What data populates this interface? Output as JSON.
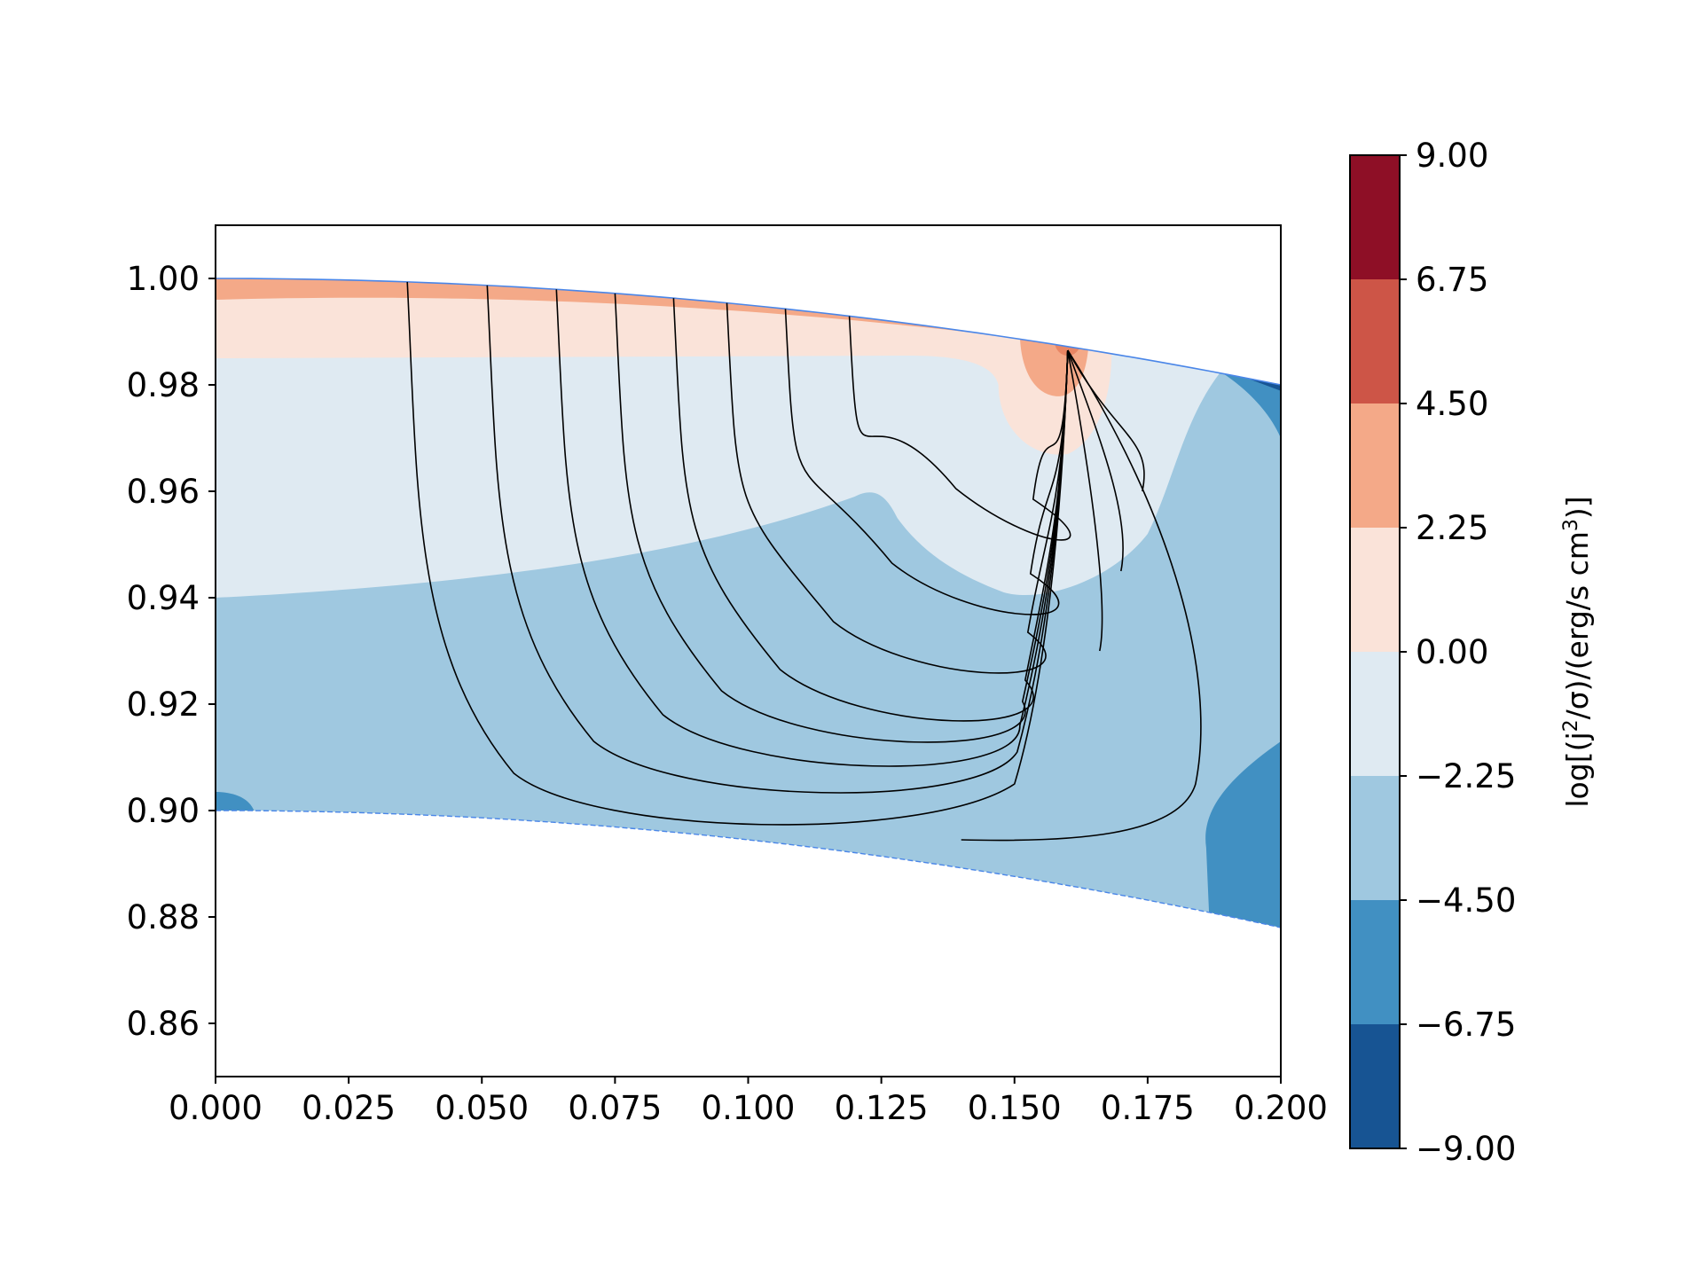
{
  "chart_data": {
    "type": "contour",
    "title": "",
    "xlabel": "",
    "ylabel": "",
    "xlim": [
      0.0,
      0.2
    ],
    "ylim": [
      0.85,
      1.01
    ],
    "x_ticks": [
      "0.000",
      "0.025",
      "0.050",
      "0.075",
      "0.100",
      "0.125",
      "0.150",
      "0.175",
      "0.200"
    ],
    "y_ticks": [
      "0.86",
      "0.88",
      "0.90",
      "0.92",
      "0.94",
      "0.96",
      "0.98",
      "1.00"
    ],
    "grid": false,
    "outer_boundary": {
      "x": [
        0.0,
        0.05,
        0.1,
        0.15,
        0.2
      ],
      "y": [
        1.0,
        0.99875,
        0.995,
        0.98875,
        0.98
      ],
      "color": "#4a86e8"
    },
    "inner_boundary": {
      "x": [
        0.0,
        0.05,
        0.1,
        0.15,
        0.2
      ],
      "y": [
        0.9,
        0.89875,
        0.895,
        0.88875,
        0.878
      ],
      "color": "#4a86e8",
      "dashed": true
    },
    "contour_regions": [
      {
        "level": "0.00 to 2.25",
        "color": "#fae3d9",
        "description": "top layer band"
      },
      {
        "level": "2.25 to 4.50",
        "color": "#f4a988",
        "description": "thin surface strip and source spot"
      },
      {
        "level": "-2.25 to 0.00",
        "color": "#dfeaf2",
        "description": "upper interior"
      },
      {
        "level": "-4.50 to -2.25",
        "color": "#9fc8e0",
        "description": "lower interior"
      },
      {
        "level": "-6.75 to -4.50",
        "color": "#4190c2",
        "description": "right edge regions"
      },
      {
        "level": "-9.00 to -6.75",
        "color": "#175493",
        "description": "top right corner"
      }
    ],
    "field_lines": {
      "color": "#000000",
      "source_point": [
        0.16,
        0.9865
      ],
      "footpoints_x": [
        0.036,
        0.051,
        0.064,
        0.075,
        0.086,
        0.096,
        0.107,
        0.119
      ],
      "closed_loop_right_extent_x": 0.186
    },
    "colorbar": {
      "label": "log[(j²/σ)/(erg/s cm³)]",
      "label_parts": {
        "prefix": "log[(j",
        "sup1": "2",
        "mid": "/σ)/(erg/s cm",
        "sup2": "3",
        "suffix": ")]"
      },
      "ticks": [
        "9.00",
        "6.75",
        "4.50",
        "2.25",
        "0.00",
        "−2.25",
        "−4.50",
        "−6.75",
        "−9.00"
      ],
      "colors": [
        "#8e0f26",
        "#cd5547",
        "#f4a988",
        "#fae3d9",
        "#dfeaf2",
        "#9fc8e0",
        "#4190c2",
        "#175493"
      ]
    }
  }
}
